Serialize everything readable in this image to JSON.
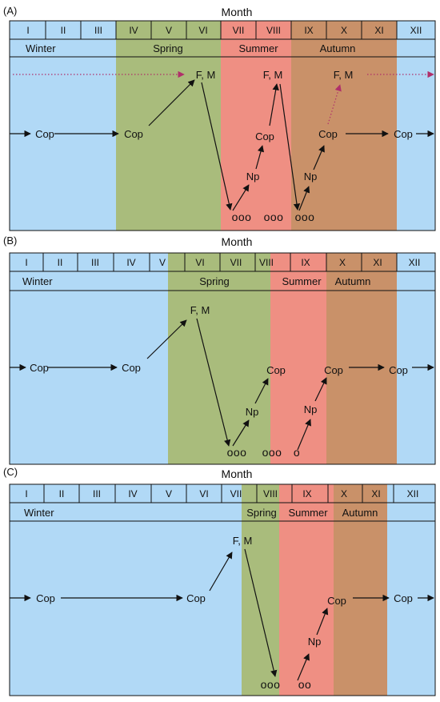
{
  "colors": {
    "winter": "#b1d9f6",
    "spring": "#a9bc7c",
    "summer": "#ef8f83",
    "autumn": "#c99169",
    "line": "#111111",
    "dotted": "#b0306a"
  },
  "months": [
    "I",
    "II",
    "III",
    "IV",
    "V",
    "VI",
    "VII",
    "VIII",
    "IX",
    "X",
    "XI",
    "XII"
  ],
  "panels": [
    {
      "label": "(A)",
      "title": "Month",
      "seasons": {
        "winter": "Winter",
        "spring": "Spring",
        "summer": "Summer",
        "autumn": "Autumn"
      },
      "nodes": {
        "cop1": "Cop",
        "cop2": "Cop",
        "fm1": "F, M",
        "np1": "Np",
        "cop3": "Cop",
        "fm2": "F, M",
        "np2": "Np",
        "cop4": "Cop",
        "fm3": "F, M",
        "cop5": "Cop",
        "eggs1": "ooo",
        "eggs2": "ooo",
        "eggs3": "ooo"
      }
    },
    {
      "label": "(B)",
      "title": "Month",
      "seasons": {
        "winter": "Winter",
        "spring": "Spring",
        "summer": "Summer",
        "autumn": "Autumn"
      },
      "nodes": {
        "cop1": "Cop",
        "cop2": "Cop",
        "fm1": "F, M",
        "np1": "Np",
        "cop3": "Cop",
        "np2": "Np",
        "cop4": "Cop",
        "cop5": "Cop",
        "eggs1": "ooo",
        "eggs2": "ooo",
        "eggs3": "o"
      }
    },
    {
      "label": "(C)",
      "title": "Month",
      "seasons": {
        "winter": "Winter",
        "spring": "Spring",
        "summer": "Summer",
        "autumn": "Autumn"
      },
      "nodes": {
        "cop1": "Cop",
        "cop2": "Cop",
        "fm1": "F, M",
        "np1": "Np",
        "cop3": "Cop",
        "cop4": "Cop",
        "eggs1": "ooo",
        "eggs2": "oo"
      }
    }
  ]
}
